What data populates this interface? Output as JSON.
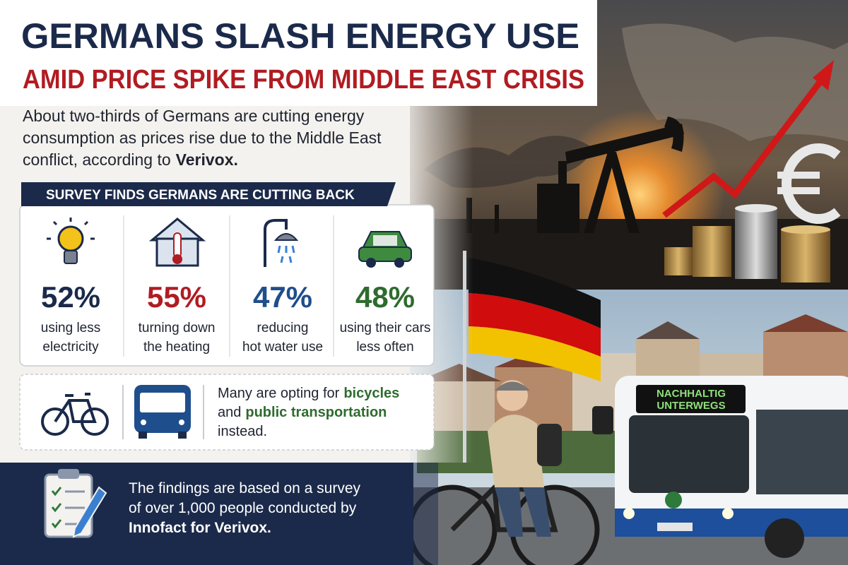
{
  "header": {
    "title": "GERMANS SLASH ENERGY USE",
    "subtitle": "AMID PRICE SPIKE FROM MIDDLE EAST CRISIS"
  },
  "intro": {
    "lines": [
      "About two-thirds of Germans are cutting energy",
      "consumption as prices rise due to the Middle East",
      "conflict, according to"
    ],
    "emphasis": "Verivox."
  },
  "survey": {
    "heading": "SURVEY FINDS GERMANS ARE CUTTING BACK",
    "stats": [
      {
        "percent": "52%",
        "label": [
          "using less",
          "electricity"
        ]
      },
      {
        "percent": "55%",
        "label": [
          "turning down",
          "the heating"
        ]
      },
      {
        "percent": "47%",
        "label": [
          "reducing",
          "hot water use"
        ]
      },
      {
        "percent": "48%",
        "label": [
          "using their cars",
          "less often"
        ]
      }
    ]
  },
  "transport": {
    "lines": [
      {
        "text": "Many are opting for",
        "emphasis": "bicycles"
      },
      {
        "text": "and",
        "emphasis": "public transportation"
      },
      {
        "text": "instead."
      }
    ]
  },
  "footer": {
    "lines": [
      "The findings are based on a survey",
      "of over 1,000 people conducted by"
    ],
    "emphasis": "Innofact for Verivox."
  },
  "photo": {
    "bus_sign": [
      "NACHHALTIG",
      "UNTERWEGS"
    ]
  }
}
